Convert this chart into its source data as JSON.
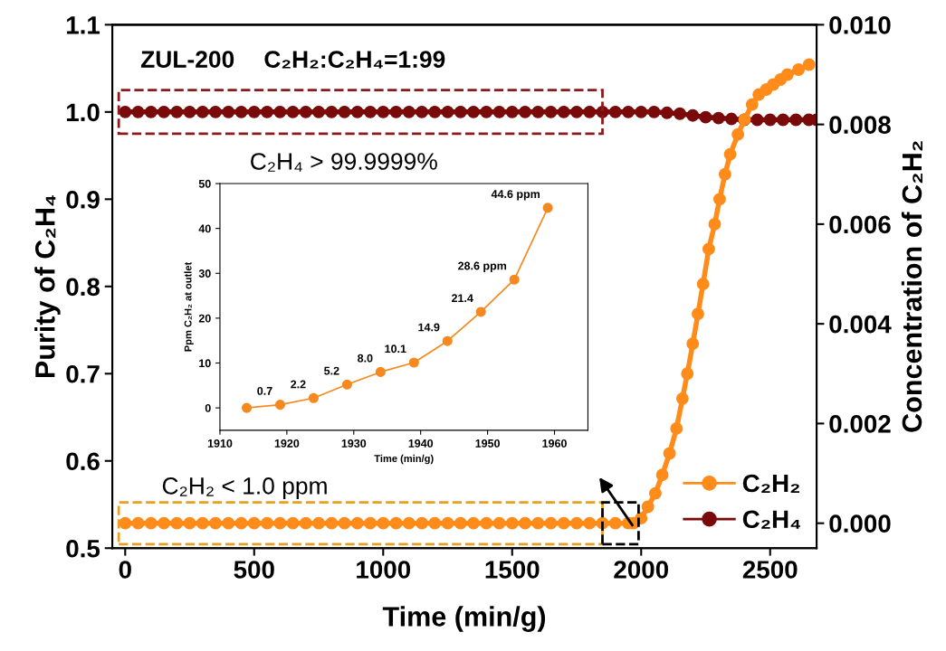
{
  "chart_data": [
    {
      "type": "line",
      "xlabel": "Time (min/g)",
      "ylabel": "Purity of C₂H₄",
      "y2label": "Concentration of C₂H₂",
      "xlim": [
        -50,
        2680
      ],
      "xticks": [
        0,
        500,
        1000,
        1500,
        2000,
        2500
      ],
      "ylim": [
        0.5,
        1.1
      ],
      "yticks": [
        0.5,
        0.6,
        0.7,
        0.8,
        0.9,
        {
          "value": 1.0,
          "label": "1.0"
        },
        1.1
      ],
      "y2lim": [
        -0.0005,
        0.01
      ],
      "y2ticks": [
        {
          "value": 0,
          "label": "0.000"
        },
        {
          "value": 0.002,
          "label": "0.002"
        },
        {
          "value": 0.004,
          "label": "0.004"
        },
        {
          "value": 0.006,
          "label": "0.006"
        },
        {
          "value": 0.008,
          "label": "0.008"
        },
        {
          "value": 0.01,
          "label": "0.010"
        }
      ],
      "marker": "circle",
      "line_style": "solid",
      "legend": "bottom right",
      "grid": false,
      "annotations": [
        "ZUL-200",
        "C₂H₂:C₂H₄=1:99",
        "C₂H₄ > 99.9999%",
        "C₂H₂ < 1.0 ppm"
      ],
      "series": [
        {
          "name": "C₂H₂",
          "color": "#ff8c1a",
          "axis": "y2",
          "x": [
            0,
            50,
            100,
            150,
            200,
            250,
            300,
            350,
            400,
            450,
            500,
            550,
            600,
            650,
            700,
            750,
            800,
            850,
            900,
            950,
            1000,
            1050,
            1100,
            1150,
            1200,
            1250,
            1300,
            1350,
            1400,
            1450,
            1500,
            1550,
            1600,
            1650,
            1700,
            1750,
            1800,
            1850,
            1900,
            1950,
            1970,
            2000,
            2026,
            2055,
            2082,
            2110,
            2137,
            2160,
            2179,
            2200,
            2220,
            2240,
            2262,
            2285,
            2304,
            2325,
            2345,
            2375,
            2401,
            2430,
            2456,
            2485,
            2512,
            2540,
            2567,
            2610,
            2651
          ],
          "values": [
            0,
            0,
            0,
            0,
            0,
            0,
            0,
            0,
            0,
            0,
            0,
            0,
            0,
            0,
            0,
            0,
            0,
            0,
            0,
            0,
            0,
            0,
            0,
            0,
            0,
            0,
            0,
            0,
            0,
            0,
            0,
            0,
            0,
            0,
            0,
            0,
            0,
            0,
            0,
            0,
            0,
            0.0001,
            0.00033,
            0.0006,
            0.00097,
            0.0014,
            0.0019,
            0.0025,
            0.003,
            0.0036,
            0.0042,
            0.0048,
            0.0055,
            0.006,
            0.0065,
            0.007,
            0.0074,
            0.0078,
            0.0081,
            0.0084,
            0.0086,
            0.0087,
            0.0088,
            0.0089,
            0.009,
            0.0091,
            0.0092
          ]
        },
        {
          "name": "C₂H₄",
          "color": "#7a0a0a",
          "x": [
            0,
            50,
            100,
            150,
            200,
            250,
            300,
            350,
            400,
            450,
            500,
            550,
            600,
            650,
            700,
            750,
            800,
            850,
            900,
            950,
            1000,
            1050,
            1100,
            1150,
            1200,
            1250,
            1300,
            1350,
            1400,
            1450,
            1500,
            1550,
            1600,
            1650,
            1700,
            1750,
            1800,
            1850,
            1900,
            1950,
            2000,
            2050,
            2100,
            2150,
            2200,
            2250,
            2300,
            2350,
            2400,
            2450,
            2500,
            2550,
            2600,
            2650,
            2680
          ],
          "values": [
            1.0,
            1.0,
            1.0,
            1.0,
            1.0,
            1.0,
            1.0,
            1.0,
            1.0,
            1.0,
            1.0,
            1.0,
            1.0,
            1.0,
            1.0,
            1.0,
            1.0,
            1.0,
            1.0,
            1.0,
            1.0,
            1.0,
            1.0,
            1.0,
            1.0,
            1.0,
            1.0,
            1.0,
            1.0,
            1.0,
            1.0,
            1.0,
            1.0,
            1.0,
            1.0,
            1.0,
            1.0,
            1.0,
            1.0,
            1.0,
            1.0,
            1.0,
            0.999,
            0.998,
            0.996,
            0.994,
            0.993,
            0.992,
            0.991,
            0.991,
            0.991,
            0.991,
            0.991,
            0.991,
            0.991
          ]
        }
      ]
    },
    {
      "type": "line",
      "xlabel": "Time (min/g)",
      "ylabel": "Ppm C₂H₂ at outlet",
      "xlim": [
        1910,
        1965
      ],
      "xticks": [
        1910,
        1920,
        1930,
        1940,
        1950,
        1960
      ],
      "ylim": [
        -5,
        50
      ],
      "yticks": [
        0,
        10,
        20,
        30,
        40,
        50
      ],
      "marker": "circle",
      "line_style": "solid",
      "grid": false,
      "series": [
        {
          "color": "#f5891f",
          "x": [
            1914,
            1919,
            1924,
            1929,
            1934,
            1939,
            1944,
            1949,
            1954,
            1959
          ],
          "values": [
            0,
            0.7,
            2.2,
            5.2,
            8.0,
            10.1,
            14.9,
            21.4,
            28.6,
            44.6
          ],
          "value_labels": [
            null,
            "0.7",
            "2.2",
            "5.2",
            "8.0",
            "10.1",
            "14.9",
            "21.4",
            "28.6 ppm",
            "44.6 ppm"
          ]
        }
      ]
    }
  ]
}
